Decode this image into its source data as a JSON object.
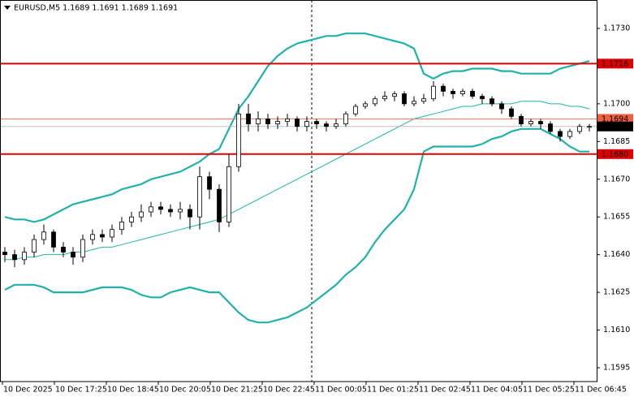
{
  "chart_data": {
    "type": "candlestick",
    "title": "EURUSD,M5  1.1689 1.1691 1.1689 1.1691",
    "ylim": [
      1.15895,
      1.17413
    ],
    "yticks": [
      {
        "value": 1.173,
        "label": "1.1730"
      },
      1.1715,
      {
        "value": 1.17,
        "label": "1.1700"
      },
      1.1685,
      {
        "value": 1.167,
        "label": "1.1670"
      },
      1.1655,
      {
        "value": 1.164,
        "label": "1.1640"
      },
      1.1625,
      {
        "value": 1.161,
        "label": "1.1610"
      },
      1.1595
    ],
    "x_labels": [
      "10 Dec 2025",
      "10 Dec 17:25",
      "10 Dec 18:45",
      "10 Dec 20:05",
      "10 Dec 21:25",
      "10 Dec 22:45",
      "11 Dec 00:05",
      "11 Dec 01:25",
      "11 Dec 02:45",
      "11 Dec 04:05",
      "11 Dec 05:25",
      "11 Dec 06:45"
    ],
    "open": [
      1.1641,
      1.164,
      1.1638,
      1.1641,
      1.1646,
      1.1649,
      1.1643,
      1.1641,
      1.1639,
      1.1646,
      1.1648,
      1.1647,
      1.165,
      1.1653,
      1.1655,
      1.1657,
      1.1659,
      1.1658,
      1.1657,
      1.1658,
      1.1655,
      1.1671,
      1.1666,
      1.1653,
      1.1675,
      1.1696,
      1.1692,
      1.1694,
      1.1692,
      1.1693,
      1.1694,
      1.1691,
      1.1693,
      1.1692,
      1.1691,
      1.1692,
      1.1696,
      1.1699,
      1.17,
      1.1702,
      1.1703,
      1.1704,
      1.17,
      1.1701,
      1.1702,
      1.1707,
      1.1705,
      1.1704,
      1.1705,
      1.1703,
      1.1702,
      1.17,
      1.1698,
      1.1695,
      1.1692,
      1.1693,
      1.1692,
      1.1689,
      1.1687,
      1.1689,
      1.1691
    ],
    "high": [
      1.1643,
      1.1642,
      1.1643,
      1.1648,
      1.1652,
      1.165,
      1.1645,
      1.1643,
      1.1648,
      1.165,
      1.165,
      1.1652,
      1.1655,
      1.1657,
      1.166,
      1.1661,
      1.1661,
      1.166,
      1.1661,
      1.166,
      1.1675,
      1.1673,
      1.1668,
      1.168,
      1.17,
      1.17,
      1.1697,
      1.1696,
      1.1695,
      1.1696,
      1.1695,
      1.1695,
      1.1694,
      1.1693,
      1.1694,
      1.1697,
      1.17,
      1.1701,
      1.1703,
      1.1705,
      1.1705,
      1.1705,
      1.1703,
      1.1704,
      1.1709,
      1.1708,
      1.1706,
      1.1706,
      1.1706,
      1.1704,
      1.1703,
      1.1701,
      1.1699,
      1.1696,
      1.1694,
      1.1694,
      1.1693,
      1.169,
      1.169,
      1.1692,
      1.1692
    ],
    "low": [
      1.1637,
      1.1635,
      1.1636,
      1.1639,
      1.1644,
      1.1641,
      1.1639,
      1.1636,
      1.1637,
      1.1644,
      1.1645,
      1.1645,
      1.1648,
      1.1651,
      1.1653,
      1.1655,
      1.1656,
      1.1655,
      1.1654,
      1.165,
      1.165,
      1.1662,
      1.1649,
      1.1651,
      1.1673,
      1.1689,
      1.1689,
      1.169,
      1.169,
      1.1691,
      1.1689,
      1.1689,
      1.169,
      1.1689,
      1.169,
      1.1691,
      1.1695,
      1.1698,
      1.1699,
      1.1701,
      1.1701,
      1.1699,
      1.1699,
      1.17,
      1.1701,
      1.1703,
      1.1702,
      1.1703,
      1.1702,
      1.17,
      1.1699,
      1.1696,
      1.1694,
      1.1691,
      1.1691,
      1.169,
      1.1688,
      1.1685,
      1.1686,
      1.1688,
      1.1689
    ],
    "close": [
      1.164,
      1.1638,
      1.1641,
      1.1646,
      1.1649,
      1.1643,
      1.1641,
      1.1639,
      1.1646,
      1.1648,
      1.1647,
      1.165,
      1.1653,
      1.1655,
      1.1657,
      1.1659,
      1.1658,
      1.1657,
      1.1658,
      1.1655,
      1.1671,
      1.1666,
      1.1653,
      1.1675,
      1.1696,
      1.1692,
      1.1694,
      1.1692,
      1.1693,
      1.1694,
      1.1691,
      1.1693,
      1.1692,
      1.1691,
      1.1692,
      1.1696,
      1.1699,
      1.17,
      1.1702,
      1.1703,
      1.1704,
      1.17,
      1.1701,
      1.1702,
      1.1707,
      1.1705,
      1.1704,
      1.1705,
      1.1703,
      1.1702,
      1.17,
      1.1698,
      1.1695,
      1.1692,
      1.1693,
      1.1692,
      1.1689,
      1.1687,
      1.1689,
      1.1691,
      1.1691
    ],
    "series": [
      {
        "color": "#20b2aa",
        "line_width": 2.2,
        "values": [
          1.1655,
          1.1654,
          1.1654,
          1.1653,
          1.1654,
          1.1656,
          1.1658,
          1.166,
          1.1661,
          1.1662,
          1.1663,
          1.1664,
          1.1666,
          1.1667,
          1.1668,
          1.167,
          1.1671,
          1.1672,
          1.1673,
          1.1675,
          1.1677,
          1.168,
          1.1682,
          1.169,
          1.1698,
          1.1703,
          1.1709,
          1.1715,
          1.1719,
          1.1722,
          1.1724,
          1.1725,
          1.1726,
          1.1727,
          1.1727,
          1.1728,
          1.1728,
          1.1728,
          1.1727,
          1.1726,
          1.1725,
          1.1724,
          1.1722,
          1.1712,
          1.171,
          1.1712,
          1.1713,
          1.1713,
          1.1714,
          1.1714,
          1.1714,
          1.1713,
          1.1713,
          1.1712,
          1.1712,
          1.1712,
          1.1712,
          1.1714,
          1.1715,
          1.1716,
          1.1717
        ]
      },
      {
        "color": "#20b2aa",
        "line_width": 1,
        "values": [
          1.1638,
          1.1638,
          1.1639,
          1.1639,
          1.164,
          1.164,
          1.164,
          1.1641,
          1.1641,
          1.1642,
          1.1643,
          1.1643,
          1.1644,
          1.1645,
          1.1646,
          1.1647,
          1.1648,
          1.1649,
          1.165,
          1.1651,
          1.1652,
          1.1653,
          1.1654,
          1.1656,
          1.1658,
          1.166,
          1.1662,
          1.1664,
          1.1666,
          1.1668,
          1.167,
          1.1672,
          1.1674,
          1.1676,
          1.1678,
          1.168,
          1.1682,
          1.1684,
          1.1686,
          1.1688,
          1.169,
          1.1692,
          1.1694,
          1.1695,
          1.1696,
          1.1697,
          1.1698,
          1.1699,
          1.1699,
          1.17,
          1.17,
          1.17,
          1.17,
          1.1701,
          1.1701,
          1.1701,
          1.17,
          1.17,
          1.1699,
          1.1699,
          1.1698
        ]
      },
      {
        "color": "#20b2aa",
        "line_width": 2.2,
        "values": [
          1.1626,
          1.1628,
          1.1628,
          1.1628,
          1.1627,
          1.1625,
          1.1625,
          1.1625,
          1.1625,
          1.1626,
          1.1627,
          1.1627,
          1.1627,
          1.1626,
          1.1624,
          1.1623,
          1.1623,
          1.1625,
          1.1626,
          1.1627,
          1.1626,
          1.1625,
          1.1625,
          1.1621,
          1.1617,
          1.1614,
          1.1613,
          1.1613,
          1.1614,
          1.1615,
          1.1617,
          1.1619,
          1.1622,
          1.1625,
          1.1628,
          1.1632,
          1.1635,
          1.1639,
          1.1645,
          1.165,
          1.1654,
          1.1658,
          1.1666,
          1.1681,
          1.1683,
          1.1683,
          1.1683,
          1.1683,
          1.1683,
          1.1684,
          1.1686,
          1.1687,
          1.1689,
          1.169,
          1.169,
          1.169,
          1.1688,
          1.1686,
          1.1683,
          1.1681,
          1.1681
        ]
      }
    ],
    "levels": [
      {
        "value": 1.1716,
        "color": "#e00000",
        "label_color": "#e00000",
        "line_width": 2
      },
      {
        "value": 1.1694,
        "color": "#f08060",
        "label_color": "#f06040",
        "line_width": 1
      },
      {
        "value": 1.1691,
        "color": "#c0c0c0",
        "label_color": "#000000",
        "line_width": 1
      },
      {
        "value": 1.168,
        "label": "1.1680",
        "color": "#e00000",
        "label_color": "#e00000",
        "line_width": 2
      }
    ]
  }
}
